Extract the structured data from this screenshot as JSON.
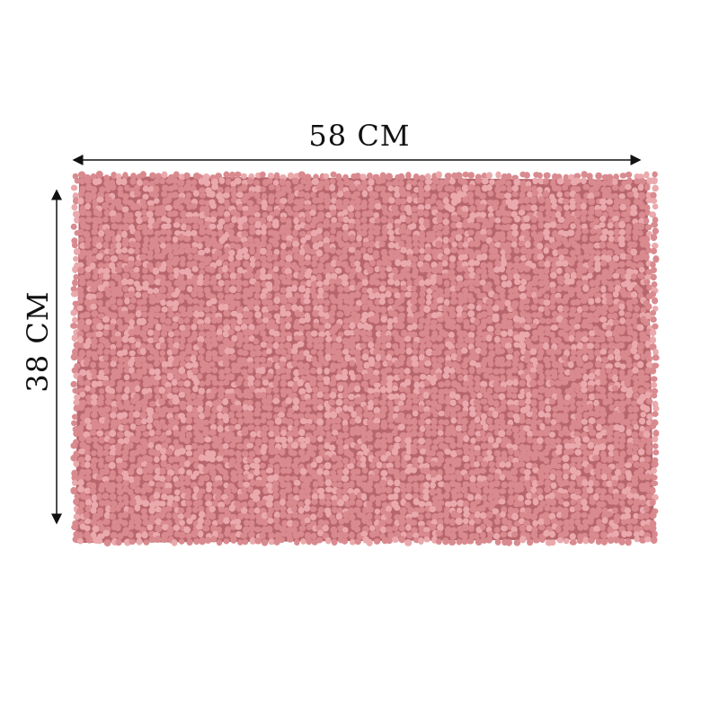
{
  "dimensions": {
    "width_label": "58 CM",
    "height_label": "38 CM"
  },
  "product": {
    "kind": "chenille bath mat",
    "color": "#d98a8f",
    "shade_color": "#b8666d",
    "highlight_color": "#eaa9ac"
  },
  "arrow_color": "#111111"
}
